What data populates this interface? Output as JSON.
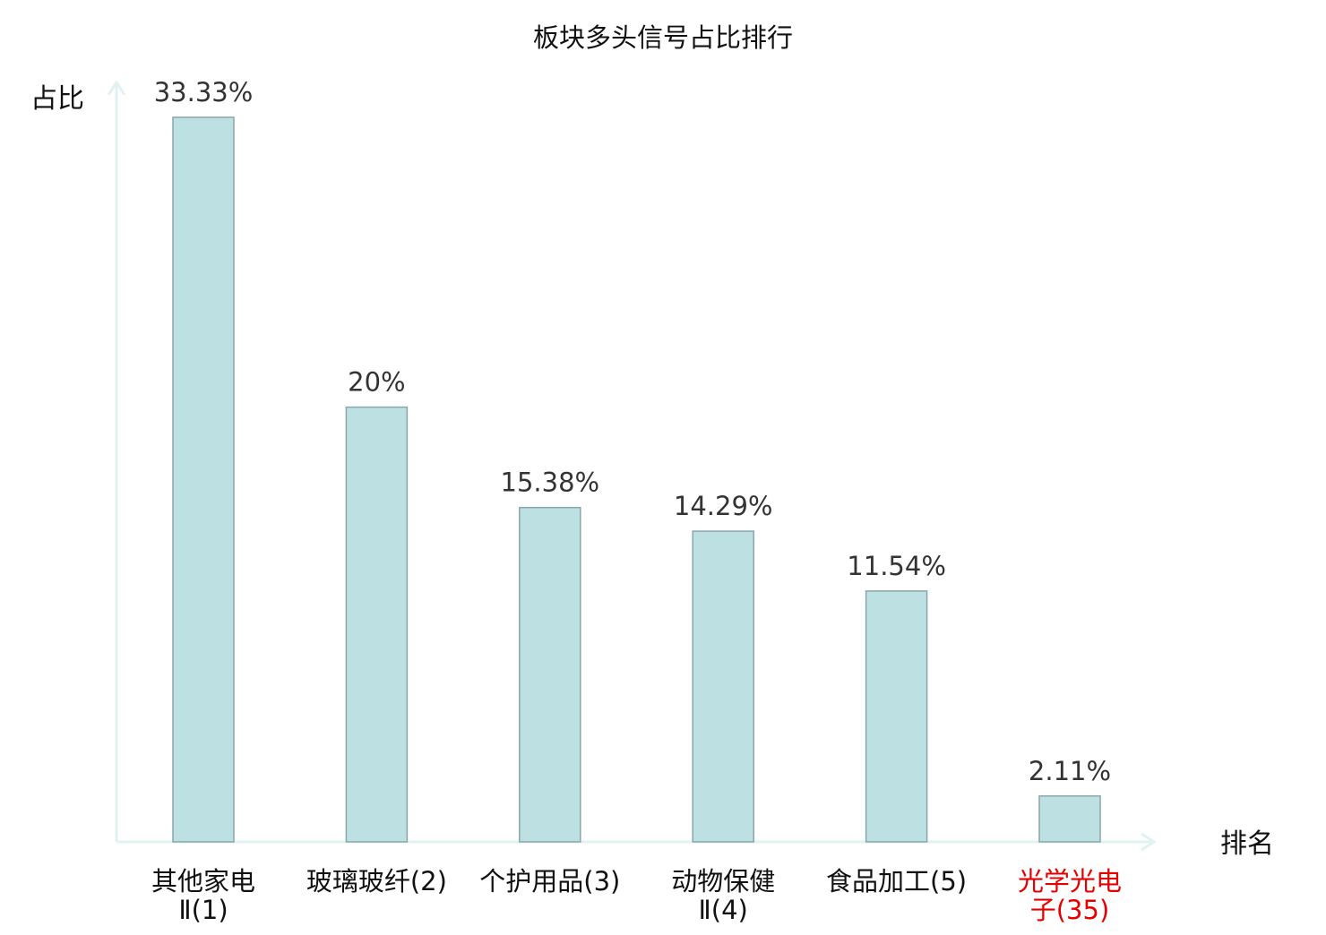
{
  "chart_data": {
    "type": "bar",
    "title": "板块多头信号占比排行",
    "ylabel": "占比",
    "xlabel": "排名",
    "categories": [
      {
        "lines": [
          "其他家电",
          "Ⅱ(1)"
        ],
        "highlight": false
      },
      {
        "lines": [
          "玻璃玻纤(2)"
        ],
        "highlight": false
      },
      {
        "lines": [
          "个护用品(3)"
        ],
        "highlight": false
      },
      {
        "lines": [
          "动物保健",
          "Ⅱ(4)"
        ],
        "highlight": false
      },
      {
        "lines": [
          "食品加工(5)"
        ],
        "highlight": false
      },
      {
        "lines": [
          "光学光电",
          "子(35)"
        ],
        "highlight": true
      }
    ],
    "values": [
      33.33,
      20,
      15.38,
      14.29,
      11.54,
      2.11
    ],
    "value_labels": [
      "33.33%",
      "20%",
      "15.38%",
      "14.29%",
      "11.54%",
      "2.11%"
    ],
    "ylim": [
      0,
      33.33
    ],
    "grid": false,
    "legend": "none",
    "colors": {
      "bar_fill": "#bde0e3",
      "bar_stroke": "#8aa6aa",
      "axis": "#e0f3f0",
      "text": "#111111",
      "value_text": "#333333",
      "highlight_text": "#e60000"
    }
  }
}
